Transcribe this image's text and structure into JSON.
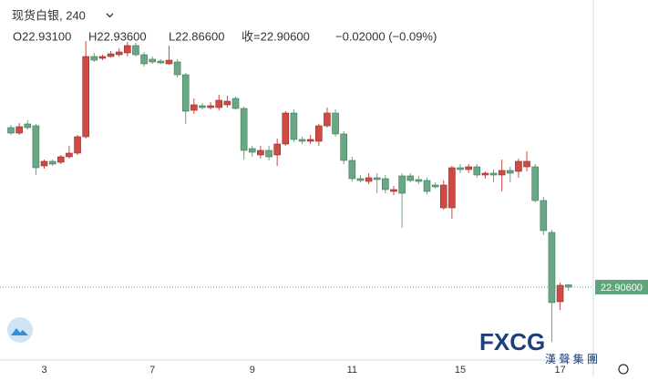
{
  "chart_data": {
    "type": "candlestick",
    "title": "现货白银, 240",
    "header_values": [
      "O22.93100",
      "H22.93600",
      "L22.86600",
      "收=22.90600",
      "−0.02000 (−0.09%)"
    ],
    "categories": [
      null,
      null,
      null,
      null,
      "3",
      null,
      null,
      null,
      null,
      null,
      null,
      null,
      null,
      null,
      null,
      null,
      null,
      "7",
      null,
      null,
      null,
      null,
      null,
      null,
      null,
      null,
      null,
      null,
      null,
      "9",
      null,
      null,
      null,
      null,
      null,
      null,
      null,
      null,
      null,
      null,
      null,
      "11",
      null,
      null,
      null,
      null,
      null,
      null,
      null,
      null,
      null,
      null,
      null,
      null,
      "15",
      null,
      null,
      null,
      null,
      null,
      null,
      null,
      null,
      null,
      null,
      null,
      "17",
      null
    ],
    "open": [
      24.656,
      24.596,
      24.696,
      24.676,
      24.236,
      24.286,
      24.276,
      24.336,
      24.376,
      24.556,
      25.436,
      25.416,
      25.436,
      25.456,
      25.476,
      25.556,
      25.456,
      25.406,
      25.386,
      25.356,
      25.376,
      25.236,
      24.846,
      24.896,
      24.876,
      24.876,
      24.906,
      24.976,
      24.866,
      24.426,
      24.356,
      24.406,
      24.356,
      24.476,
      24.816,
      24.526,
      24.506,
      24.506,
      24.676,
      24.816,
      24.586,
      24.296,
      24.096,
      24.066,
      24.106,
      24.096,
      23.956,
      24.126,
      24.126,
      24.086,
      24.076,
      24.026,
      23.776,
      23.776,
      24.216,
      24.196,
      24.226,
      24.136,
      24.156,
      24.136,
      24.186,
      24.176,
      24.226,
      24.226,
      23.856,
      23.506,
      22.746,
      22.931
    ],
    "high": [
      24.686,
      24.706,
      24.736,
      24.696,
      24.306,
      24.306,
      24.356,
      24.456,
      24.576,
      25.606,
      25.476,
      25.456,
      25.496,
      25.526,
      25.596,
      25.586,
      25.486,
      25.436,
      25.406,
      25.556,
      25.406,
      25.256,
      24.976,
      24.926,
      24.936,
      25.016,
      25.006,
      24.996,
      24.886,
      24.456,
      24.456,
      24.456,
      24.536,
      24.836,
      24.856,
      24.556,
      24.576,
      24.696,
      24.876,
      24.856,
      24.616,
      24.336,
      24.136,
      24.156,
      24.156,
      24.136,
      24.016,
      24.156,
      24.156,
      24.126,
      24.106,
      24.056,
      24.076,
      24.236,
      24.256,
      24.256,
      24.256,
      24.176,
      24.196,
      24.306,
      24.226,
      24.316,
      24.396,
      24.256,
      23.896,
      23.536,
      22.956,
      22.936
    ],
    "low": [
      24.576,
      24.576,
      24.636,
      24.136,
      24.206,
      24.236,
      24.256,
      24.316,
      24.356,
      24.536,
      25.376,
      25.396,
      25.426,
      25.436,
      25.436,
      25.436,
      25.326,
      25.356,
      25.356,
      25.346,
      25.206,
      24.696,
      24.806,
      24.856,
      24.856,
      24.846,
      24.876,
      24.856,
      24.306,
      24.336,
      24.316,
      24.296,
      24.236,
      24.456,
      24.496,
      24.476,
      24.476,
      24.456,
      24.656,
      24.556,
      24.256,
      24.066,
      24.056,
      24.036,
      23.936,
      23.936,
      23.916,
      23.556,
      24.056,
      24.036,
      23.926,
      23.986,
      23.756,
      23.656,
      24.156,
      24.156,
      24.106,
      24.096,
      24.056,
      23.956,
      24.056,
      24.106,
      24.176,
      23.836,
      23.476,
      22.306,
      22.656,
      22.866
    ],
    "close": [
      24.596,
      24.666,
      24.656,
      24.216,
      24.286,
      24.256,
      24.336,
      24.376,
      24.556,
      25.436,
      25.396,
      25.436,
      25.466,
      25.486,
      25.556,
      25.456,
      25.356,
      25.376,
      25.366,
      25.396,
      25.236,
      24.836,
      24.906,
      24.876,
      24.896,
      24.956,
      24.946,
      24.866,
      24.406,
      24.386,
      24.406,
      24.336,
      24.476,
      24.816,
      24.526,
      24.506,
      24.526,
      24.676,
      24.816,
      24.586,
      24.296,
      24.096,
      24.076,
      24.106,
      24.086,
      23.976,
      23.976,
      23.936,
      24.076,
      24.066,
      23.956,
      24.006,
      24.026,
      24.216,
      24.196,
      24.226,
      24.136,
      24.156,
      24.136,
      24.186,
      24.156,
      24.286,
      24.286,
      23.856,
      23.526,
      22.736,
      22.926,
      22.906
    ],
    "up_color": "#cf4a44",
    "down_color": "#6aa784",
    "ylim": [
      22.106,
      26.056
    ],
    "yticks": [
      {
        "value": 22.906,
        "label": "22.90600"
      }
    ],
    "last_price_color": "#5ea57c",
    "watermark": {
      "brand": "FXCG",
      "subtitle": "漢 聲 集 團"
    }
  }
}
